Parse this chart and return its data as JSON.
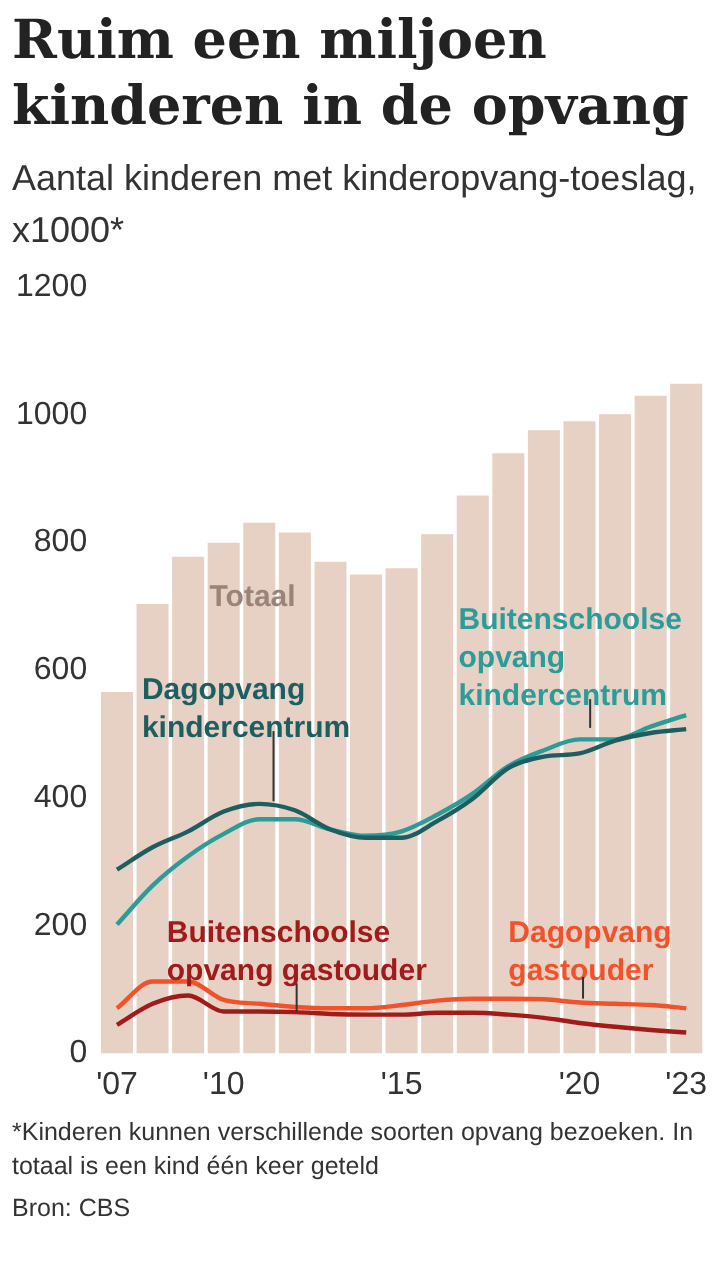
{
  "chart_data": {
    "type": "bar",
    "title": "Ruim een miljoen kinderen in de opvang",
    "subtitle": "Aantal kinderen met kinderopvang-toeslag, x1000*",
    "categories": [
      "'07",
      null,
      null,
      "'10",
      null,
      null,
      null,
      null,
      "'15",
      null,
      null,
      null,
      null,
      "'20",
      null,
      null,
      "'23"
    ],
    "series": [
      {
        "name": "Totaal",
        "color": "#e7d1c5",
        "values": [
          566,
          704,
          778,
          800,
          831,
          816,
          770,
          750,
          760,
          813,
          874,
          940,
          976,
          990,
          1001,
          1030,
          1049
        ]
      },
      {
        "name": "Dagopvang kindercentrum",
        "type": "line",
        "color": "#1d5f61",
        "values": [
          288,
          323,
          348,
          379,
          391,
          381,
          351,
          338,
          338,
          364,
          399,
          447,
          465,
          470,
          490,
          502,
          508
        ]
      },
      {
        "name": "Buitenschoolse opvang kindercentrum",
        "type": "line",
        "color": "#2b9c98",
        "values": [
          202,
          263,
          309,
          344,
          367,
          367,
          351,
          341,
          348,
          374,
          407,
          450,
          475,
          492,
          492,
          512,
          530
        ]
      },
      {
        "name": "Buitenschoolse opvang gastouder",
        "type": "line",
        "color": "#a11b1b",
        "values": [
          45,
          78,
          91,
          66,
          66,
          65,
          62,
          61,
          61,
          64,
          64,
          61,
          56,
          48,
          42,
          37,
          33
        ]
      },
      {
        "name": "Dagopvang gastouder",
        "type": "line",
        "color": "#f0532b",
        "values": [
          71,
          113,
          113,
          84,
          78,
          73,
          71,
          71,
          76,
          83,
          86,
          86,
          85,
          80,
          78,
          76,
          71
        ]
      }
    ],
    "ylim": [
      0,
      1200
    ],
    "yticks": [
      0,
      200,
      400,
      600,
      800,
      1000,
      1200
    ],
    "grid": false,
    "legend": false,
    "annotations": [
      "*Kinderen kunnen verschillende soorten opvang bezoeken. In totaal is een kind één keer geteld",
      "Bron: CBS"
    ]
  }
}
